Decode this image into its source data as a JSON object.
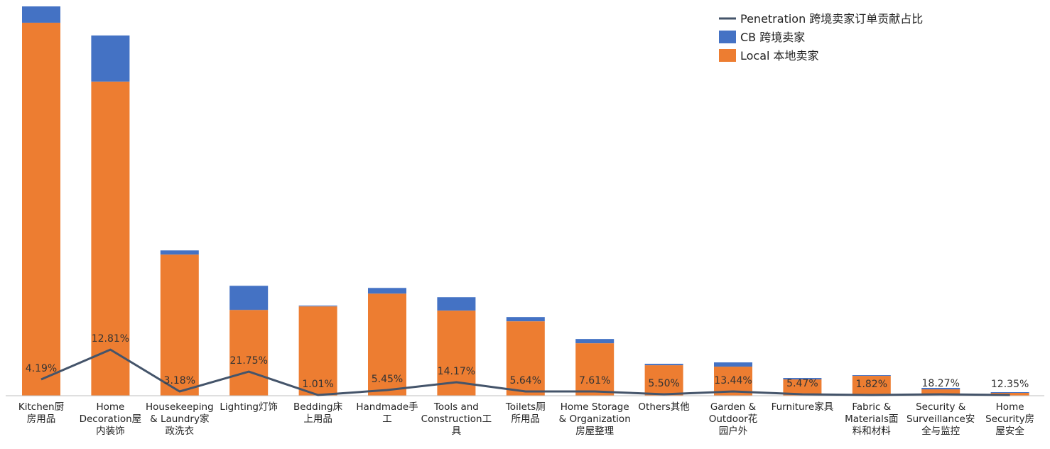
{
  "chart_data": {
    "type": "bar",
    "stacked": true,
    "categories": [
      [
        "Kitchen厨",
        "房用品"
      ],
      [
        "Home",
        "Decoration屋",
        "内装饰"
      ],
      [
        "Housekeeping",
        "& Laundry家",
        "政洗衣"
      ],
      [
        "Lighting灯饰"
      ],
      [
        "Bedding床",
        "上用品"
      ],
      [
        "Handmade手",
        "工"
      ],
      [
        "Tools and",
        "Construction工",
        "具"
      ],
      [
        "Toilets厕",
        "所用品"
      ],
      [
        "Home Storage",
        "& Organization",
        "房屋整理"
      ],
      [
        "Others其他"
      ],
      [
        "Garden &",
        "Outdoor花",
        "园户外"
      ],
      [
        "Furniture家具"
      ],
      [
        "Fabric &",
        "Materials面",
        "料和材料"
      ],
      [
        "Security &",
        "Surveillance安",
        "全与监控"
      ],
      [
        "Home",
        "Security房",
        "屋安全"
      ]
    ],
    "series": [
      {
        "name": "Local 本地卖家",
        "color": "#ED7D31",
        "values": [
          526,
          443,
          199,
          121,
          126,
          144,
          120,
          105,
          74,
          43,
          41,
          23,
          28,
          9,
          4
        ]
      },
      {
        "name": "CB 跨境卖家",
        "color": "#4472C4",
        "values": [
          23,
          65,
          6,
          34,
          1,
          8,
          19,
          6,
          6,
          2,
          6,
          2,
          1,
          2,
          1
        ]
      }
    ],
    "line": {
      "name": "Penetration 跨境卖家订单贡献占比",
      "color": "#44546A",
      "values": [
        23,
        65,
        6,
        34,
        1,
        8,
        19,
        6,
        6,
        2,
        6,
        2,
        1,
        2,
        1
      ],
      "labels": [
        "4.19%",
        "12.81%",
        "3.18%",
        "21.75%",
        "1.01%",
        "5.45%",
        "14.17%",
        "5.64%",
        "7.61%",
        "5.50%",
        "13.44%",
        "5.47%",
        "1.82%",
        "18.27%",
        "12.35%"
      ]
    },
    "ylim": [
      0,
      550
    ],
    "grid": false,
    "legend": "top-right",
    "legend_order": [
      "Penetration 跨境卖家订单贡献占比",
      "CB 跨境卖家",
      "Local 本地卖家"
    ]
  }
}
